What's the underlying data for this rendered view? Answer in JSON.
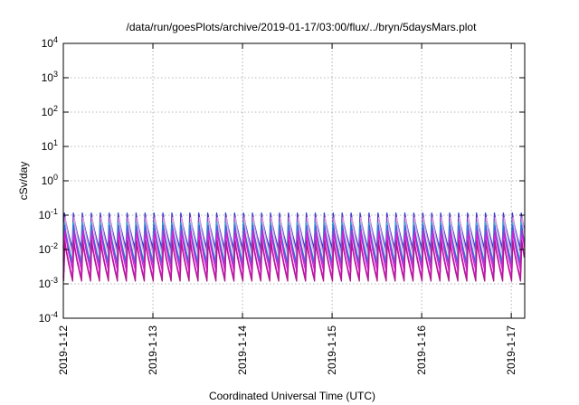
{
  "chart_data": {
    "type": "line",
    "title": "/data/run/goesPlots/archive/2019-01-17/03:00/flux/../bryn/5daysMars.plot",
    "xlabel": "Coordinated Universal Time (UTC)",
    "ylabel": "cSv/day",
    "yscale": "log",
    "ylim_exponents": [
      -4,
      4
    ],
    "y_ticks": [
      {
        "base": "10",
        "exp": "4",
        "value": 10000
      },
      {
        "base": "10",
        "exp": "3",
        "value": 1000
      },
      {
        "base": "10",
        "exp": "2",
        "value": 100
      },
      {
        "base": "10",
        "exp": "1",
        "value": 10
      },
      {
        "base": "10",
        "exp": "0",
        "value": 1
      },
      {
        "base": "10",
        "exp": "-1",
        "value": 0.1
      },
      {
        "base": "10",
        "exp": "-2",
        "value": 0.01
      },
      {
        "base": "10",
        "exp": "-3",
        "value": 0.001
      },
      {
        "base": "10",
        "exp": "-4",
        "value": 0.0001
      }
    ],
    "x_ticks": [
      "2019-1-12",
      "2019-1-13",
      "2019-1-14",
      "2019-1-15",
      "2019-1-16",
      "2019-1-17"
    ],
    "x_range_days": [
      0,
      5.15
    ],
    "grid": true,
    "cycle_period_days": 0.1,
    "series": [
      {
        "color": "#1f3fd0",
        "peak": 0.115,
        "trough": 0.011
      },
      {
        "color": "#6a2fc0",
        "peak": 0.1,
        "trough": 0.008
      },
      {
        "color": "#e0a0e0",
        "peak": 0.085,
        "trough": 0.0065
      },
      {
        "color": "#2ab8c8",
        "peak": 0.06,
        "trough": 0.0045
      },
      {
        "color": "#4060e0",
        "peak": 0.05,
        "trough": 0.0035
      },
      {
        "color": "#d020d0",
        "peak": 0.035,
        "trough": 0.0022
      },
      {
        "color": "#e020e0",
        "peak": 0.025,
        "trough": 0.0015
      },
      {
        "color": "#b01890",
        "peak": 0.018,
        "trough": 0.0012
      }
    ]
  }
}
